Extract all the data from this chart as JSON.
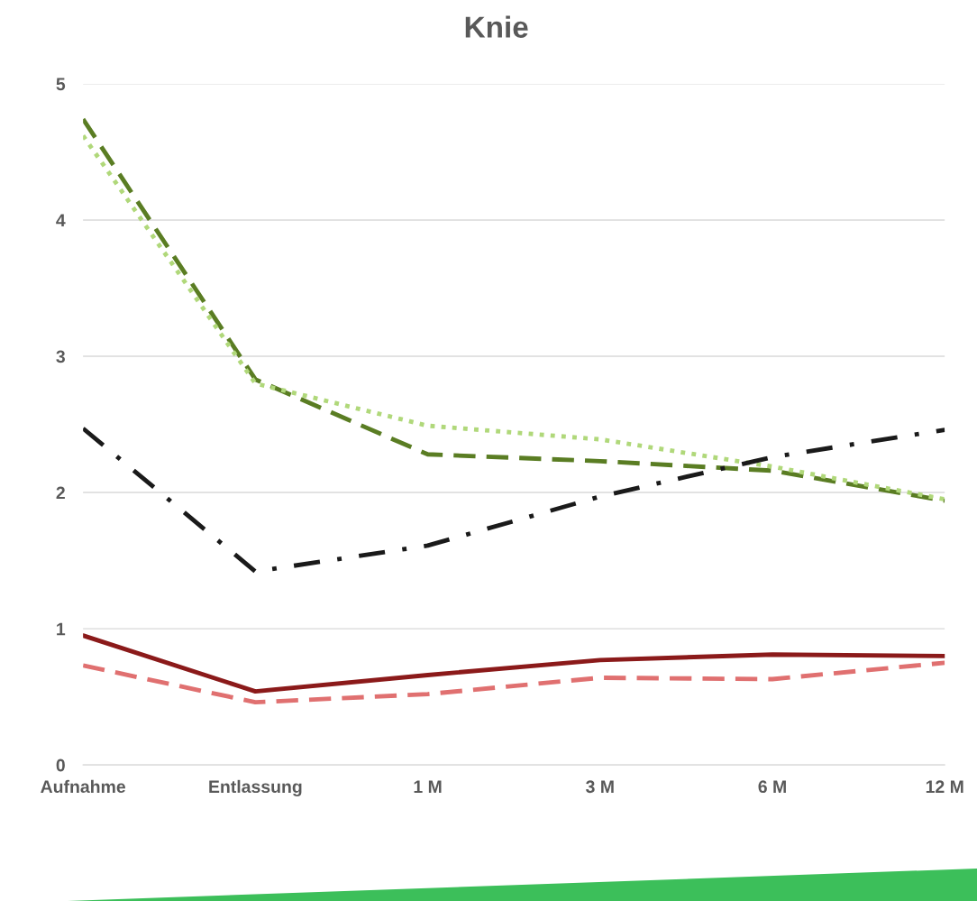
{
  "chart_data": {
    "type": "line",
    "title": "Knie",
    "categories": [
      "Aufnahme",
      "Entlassung",
      "1 M",
      "3 M",
      "6 M",
      "12 M"
    ],
    "series": [
      {
        "color": "#5a7d23",
        "line_style": "dashed",
        "values": [
          4.74,
          2.83,
          2.28,
          2.23,
          2.16,
          1.94
        ]
      },
      {
        "color": "#b0d87a",
        "line_style": "dotted",
        "values": [
          4.62,
          2.8,
          2.49,
          2.39,
          2.19,
          1.95
        ]
      },
      {
        "color": "#1a1a1a",
        "line_style": "dashdot",
        "values": [
          2.47,
          1.42,
          1.61,
          1.97,
          2.26,
          2.46
        ]
      },
      {
        "color": "#8b1a1a",
        "line_style": "solid",
        "values": [
          0.95,
          0.54,
          0.66,
          0.77,
          0.81,
          0.8
        ]
      },
      {
        "color": "#e07070",
        "line_style": "dashed",
        "values": [
          0.73,
          0.46,
          0.52,
          0.64,
          0.63,
          0.75
        ]
      }
    ],
    "ylim": [
      0,
      5
    ],
    "yticks": [
      0,
      1,
      2,
      3,
      4,
      5
    ],
    "grid": "y",
    "legend": false,
    "marker": "none"
  }
}
